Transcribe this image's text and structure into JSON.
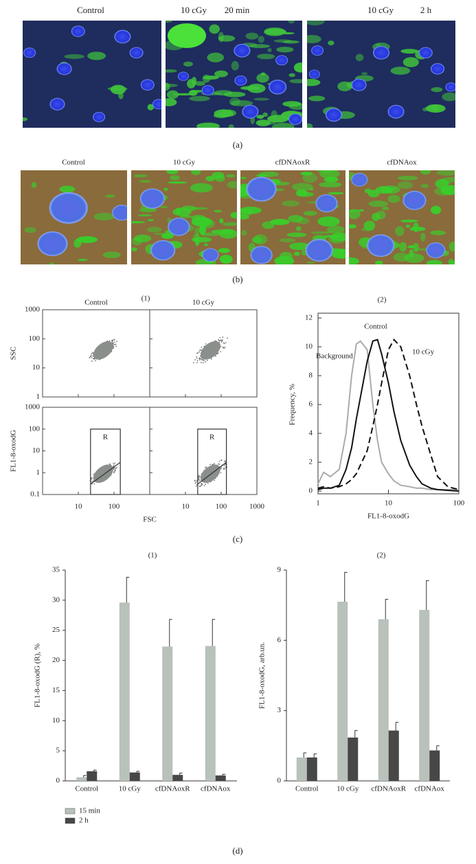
{
  "panel_a": {
    "images": [
      {
        "label": "Control"
      },
      {
        "label": "10 cGy",
        "time": "20 min"
      },
      {
        "label": "10 cGy",
        "time": "2 h"
      }
    ],
    "caption": "(a)"
  },
  "panel_b": {
    "images": [
      "Control",
      "10 cGy",
      "cfDNAoxR",
      "cfDNAox"
    ],
    "caption": "(b)"
  },
  "panel_c": {
    "caption": "(c)"
  },
  "panel_d": {
    "caption": "(d)"
  },
  "chart_data": [
    {
      "type": "scatter",
      "title": "(1)",
      "columns": [
        "Control",
        "10 cGy"
      ],
      "xlabel": "FSC",
      "xscale": "log",
      "xlim": [
        1,
        1000
      ],
      "xticks": [
        10,
        100,
        1000
      ],
      "rows": [
        {
          "ylabel": "SSC",
          "ylim": [
            1,
            1000
          ],
          "yticks": [
            1,
            10,
            100,
            1000
          ]
        },
        {
          "ylabel": "FL1-8-oxodG",
          "ylim": [
            0.1,
            1000
          ],
          "yticks": [
            0.1,
            1,
            10,
            100,
            1000
          ],
          "gate": "R"
        }
      ]
    },
    {
      "type": "line",
      "title": "(2)",
      "xlabel": "FL1-8-oxodG",
      "ylabel": "Frequency, %",
      "xscale": "log",
      "x": [
        1,
        1.2,
        1.5,
        2,
        2.5,
        3,
        3.5,
        4,
        5,
        6,
        7,
        8,
        10,
        12,
        15,
        20,
        25,
        30,
        40,
        50,
        70,
        100
      ],
      "xlim": [
        1,
        100
      ],
      "xticks": [
        1,
        10,
        100
      ],
      "ylim": [
        0,
        12
      ],
      "yticks": [
        0,
        2,
        4,
        6,
        8,
        10,
        12
      ],
      "series": [
        {
          "name": "Background",
          "color": "#aaaaaa",
          "dashed": false,
          "values": [
            0.5,
            1.3,
            1.0,
            1.5,
            4,
            8,
            10.2,
            10.4,
            9.8,
            6,
            3.5,
            2,
            1.2,
            0.7,
            0.4,
            0.3,
            0.2,
            0.2,
            0.1,
            0.1,
            0.1,
            0.1
          ]
        },
        {
          "name": "Control",
          "color": "#111111",
          "dashed": false,
          "values": [
            0.1,
            0.2,
            0.2,
            0.4,
            1.5,
            3,
            5,
            6.5,
            9,
            10.4,
            10.5,
            9.5,
            7.5,
            5.5,
            3.5,
            1.8,
            1,
            0.5,
            0.2,
            0.1,
            0.05,
            0
          ]
        },
        {
          "name": "10 cGy",
          "color": "#111111",
          "dashed": true,
          "values": [
            0.2,
            0.3,
            0.2,
            0.3,
            0.5,
            0.8,
            1.2,
            1.8,
            2.8,
            4.5,
            6,
            7.5,
            9.8,
            10.5,
            10,
            8,
            6,
            4.5,
            2.5,
            1,
            0.3,
            0.1
          ]
        }
      ]
    },
    {
      "type": "bar",
      "title": "(1)",
      "ylabel": "FL1-8-oxodG (R), %",
      "categories": [
        "Control",
        "10 cGy",
        "cfDNAoxR",
        "cfDNAox"
      ],
      "ylim": [
        0,
        35
      ],
      "yticks": [
        0,
        5,
        10,
        15,
        20,
        25,
        30,
        35
      ],
      "series": [
        {
          "name": "15 min",
          "color": "#b8c1ba",
          "values": [
            0.6,
            29.6,
            22.3,
            22.4
          ],
          "errors": [
            0.3,
            4.2,
            4.5,
            4.4
          ]
        },
        {
          "name": "2 h",
          "color": "#474747",
          "values": [
            1.6,
            1.4,
            1.0,
            0.9
          ],
          "errors": [
            0.2,
            0.2,
            0.3,
            0.2
          ]
        }
      ]
    },
    {
      "type": "bar",
      "title": "(2)",
      "ylabel": "FL1-8-oxodG, arb.un.",
      "categories": [
        "Control",
        "10 cGy",
        "cfDNAoxR",
        "cfDNAox"
      ],
      "ylim": [
        0,
        9
      ],
      "yticks": [
        0,
        3,
        6,
        9
      ],
      "series": [
        {
          "color": "#b8c1ba",
          "values": [
            1.0,
            7.65,
            6.9,
            7.3
          ],
          "errors": [
            0.2,
            1.25,
            0.85,
            1.25
          ]
        },
        {
          "color": "#474747",
          "values": [
            1.0,
            1.85,
            2.15,
            1.3
          ],
          "errors": [
            0.15,
            0.3,
            0.35,
            0.2
          ]
        }
      ]
    }
  ]
}
